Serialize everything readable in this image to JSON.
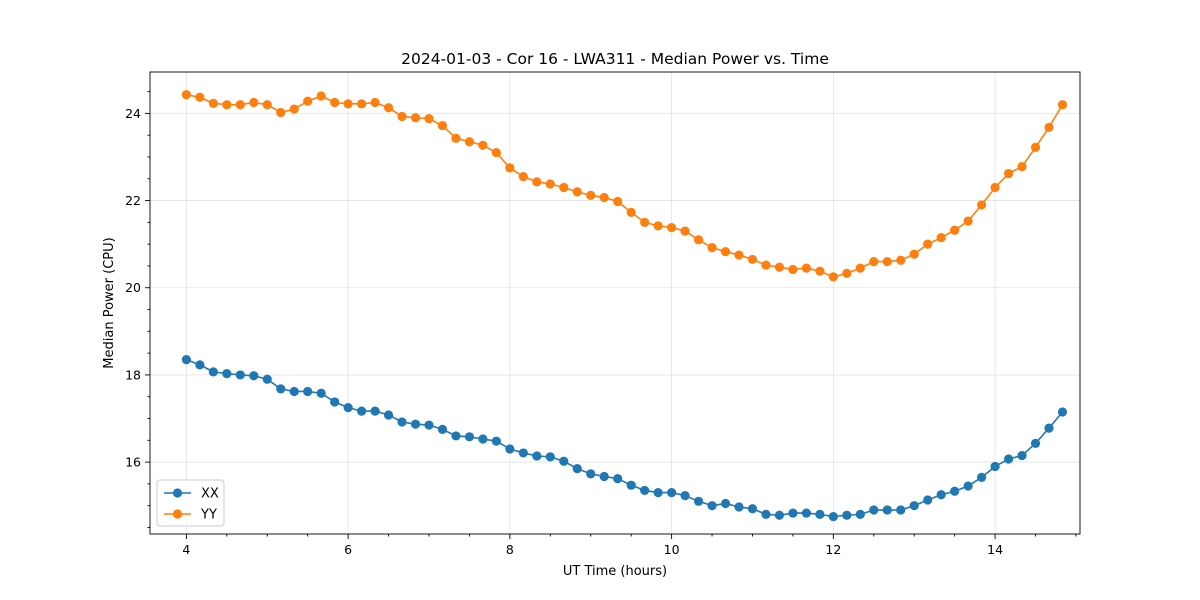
{
  "chart_data": {
    "type": "line",
    "title": "2024-01-03 - Cor 16 - LWA311 - Median Power vs. Time",
    "xlabel": "UT Time (hours)",
    "ylabel": "Median Power (CPU)",
    "xlim": [
      3.55,
      15.05
    ],
    "ylim": [
      14.35,
      24.95
    ],
    "xticks": [
      4,
      6,
      8,
      10,
      12,
      14
    ],
    "xtick_labels": [
      "4",
      "6",
      "8",
      "10",
      "12",
      "14"
    ],
    "yticks": [
      16,
      18,
      20,
      22,
      24
    ],
    "ytick_labels": [
      "16",
      "18",
      "20",
      "22",
      "24"
    ],
    "grid": true,
    "legend_position": "lower-left",
    "x": [
      4.0,
      4.1667,
      4.3333,
      4.5,
      4.6667,
      4.8333,
      5.0,
      5.1667,
      5.3333,
      5.5,
      5.6667,
      5.8333,
      6.0,
      6.1667,
      6.3333,
      6.5,
      6.6667,
      6.8333,
      7.0,
      7.1667,
      7.3333,
      7.5,
      7.6667,
      7.8333,
      8.0,
      8.1667,
      8.3333,
      8.5,
      8.6667,
      8.8333,
      9.0,
      9.1667,
      9.3333,
      9.5,
      9.6667,
      9.8333,
      10.0,
      10.1667,
      10.3333,
      10.5,
      10.6667,
      10.8333,
      11.0,
      11.1667,
      11.3333,
      11.5,
      11.6667,
      11.8333,
      12.0,
      12.1667,
      12.3333,
      12.5,
      12.6667,
      12.8333,
      13.0,
      13.1667,
      13.3333,
      13.5,
      13.6667,
      13.8333,
      14.0,
      14.1667,
      14.3333,
      14.5,
      14.6667,
      14.8333
    ],
    "series": [
      {
        "name": "XX",
        "color": "#1f77b4",
        "values": [
          18.35,
          18.23,
          18.07,
          18.03,
          18.0,
          17.98,
          17.9,
          17.68,
          17.62,
          17.62,
          17.58,
          17.38,
          17.25,
          17.17,
          17.17,
          17.08,
          16.92,
          16.87,
          16.85,
          16.75,
          16.6,
          16.58,
          16.53,
          16.48,
          16.3,
          16.21,
          16.14,
          16.12,
          16.02,
          15.85,
          15.73,
          15.67,
          15.62,
          15.47,
          15.35,
          15.3,
          15.3,
          15.23,
          15.1,
          15.0,
          15.05,
          14.97,
          14.93,
          14.8,
          14.78,
          14.83,
          14.83,
          14.8,
          14.75,
          14.78,
          14.8,
          14.9,
          14.9,
          14.9,
          15.0,
          15.13,
          15.25,
          15.33,
          15.45,
          15.65,
          15.9,
          16.07,
          16.15,
          16.43,
          16.78,
          17.15
        ]
      },
      {
        "name": "YY",
        "color": "#ff7f0e",
        "values": [
          24.43,
          24.37,
          24.23,
          24.2,
          24.2,
          24.25,
          24.2,
          24.02,
          24.1,
          24.28,
          24.4,
          24.25,
          24.22,
          24.22,
          24.25,
          24.13,
          23.93,
          23.9,
          23.88,
          23.72,
          23.43,
          23.35,
          23.27,
          23.1,
          22.75,
          22.55,
          22.43,
          22.38,
          22.3,
          22.2,
          22.12,
          22.07,
          21.98,
          21.73,
          21.5,
          21.42,
          21.38,
          21.3,
          21.1,
          20.92,
          20.83,
          20.75,
          20.65,
          20.52,
          20.47,
          20.42,
          20.45,
          20.38,
          20.25,
          20.33,
          20.45,
          20.6,
          20.6,
          20.63,
          20.77,
          21.0,
          21.15,
          21.32,
          21.53,
          21.9,
          22.3,
          22.62,
          22.78,
          23.22,
          23.68,
          24.2
        ]
      }
    ]
  }
}
